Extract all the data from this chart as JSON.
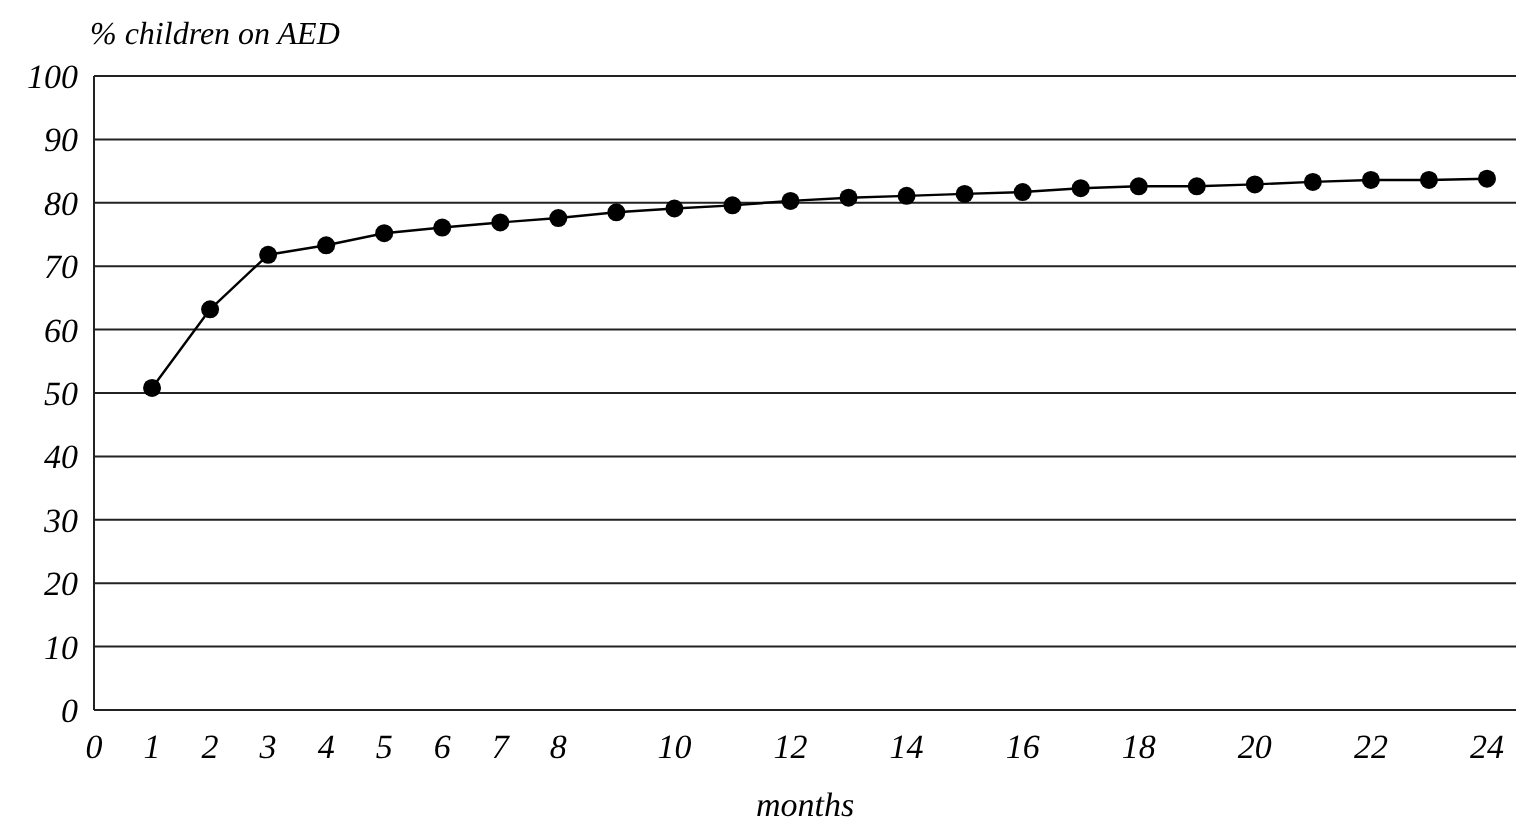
{
  "chart_data": {
    "type": "line",
    "ylabel": "% children on AED",
    "xlabel": "months",
    "x": [
      1,
      2,
      3,
      4,
      5,
      6,
      7,
      8,
      9,
      10,
      11,
      12,
      13,
      14,
      15,
      16,
      17,
      18,
      19,
      20,
      21,
      22,
      23,
      24
    ],
    "series": [
      {
        "color": "#000000",
        "values": [
          50.8,
          63.2,
          71.8,
          73.3,
          75.2,
          76.1,
          76.9,
          77.6,
          78.5,
          79.1,
          79.6,
          80.3,
          80.8,
          81.1,
          81.4,
          81.7,
          82.3,
          82.6,
          82.6,
          82.9,
          83.3,
          83.6,
          83.6,
          83.8
        ]
      }
    ],
    "xlim": [
      0,
      24.5
    ],
    "xticks": [
      0,
      1,
      2,
      3,
      4,
      5,
      6,
      7,
      8,
      10,
      12,
      14,
      16,
      18,
      20,
      22,
      24
    ],
    "ylim": [
      0,
      100
    ],
    "yticks": [
      0,
      10,
      20,
      30,
      40,
      50,
      60,
      70,
      80,
      90,
      100
    ],
    "grid": "y",
    "marker": "circle",
    "line_style": "solid"
  }
}
